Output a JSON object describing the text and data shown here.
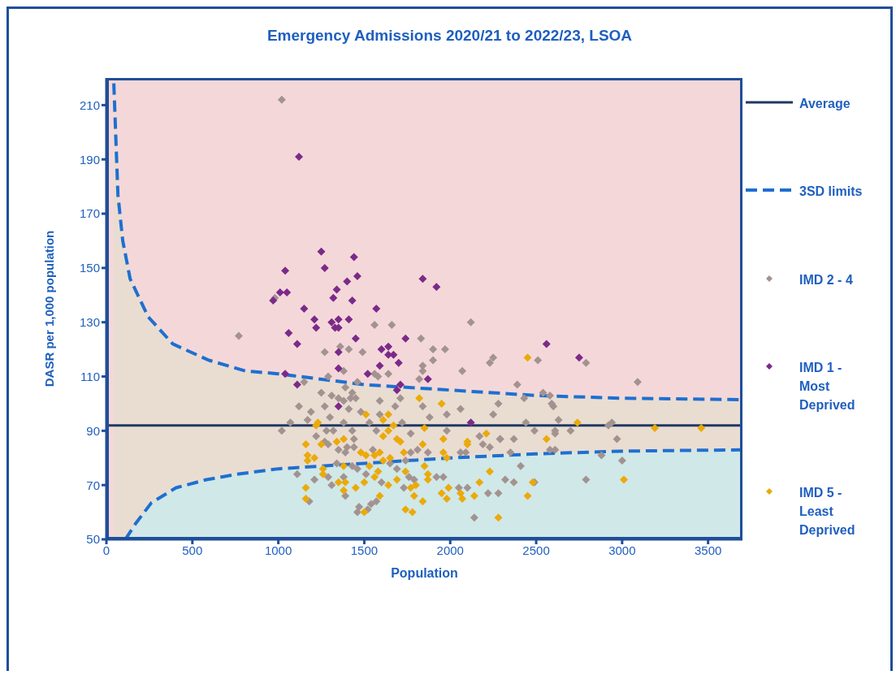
{
  "chart_data": {
    "type": "scatter",
    "title": "Emergency Admissions 2020/21 to 2022/23, LSOA",
    "xlabel": "Population",
    "ylabel": "DASR per 1,000 population",
    "xlim": [
      0,
      3700
    ],
    "ylim": [
      50,
      220
    ],
    "xticks": [
      0,
      500,
      1000,
      1500,
      2000,
      2500,
      3000,
      3500
    ],
    "yticks": [
      50,
      70,
      90,
      110,
      130,
      150,
      170,
      190,
      210
    ],
    "grid": false,
    "legend": "right",
    "series": [
      {
        "name": "Average",
        "type": "line",
        "color": "#1f3864",
        "line_style": "solid",
        "marker": "none",
        "x": [
          0,
          3700
        ],
        "values": [
          92,
          92
        ]
      },
      {
        "name": "3SD limits",
        "type": "area",
        "color": "#1f6fd0",
        "line_style": "dashed",
        "marker": "none",
        "x": [
          43,
          67,
          95,
          138,
          243,
          386,
          596,
          811,
          1000,
          1500,
          2000,
          2500,
          3000,
          3700
        ],
        "values": [
          218,
          177,
          160,
          146,
          132,
          122,
          116,
          112,
          111,
          107,
          105,
          103,
          102,
          101.5
        ]
      },
      {
        "type": "area",
        "color": "#1f6fd0",
        "line_style": "dashed",
        "marker": "none",
        "x": [
          110,
          172,
          262,
          405,
          582,
          758,
          1000,
          1500,
          2000,
          2500,
          3000,
          3700
        ],
        "values": [
          50,
          56,
          63.5,
          69,
          72,
          74,
          76,
          78,
          80,
          81.5,
          82.5,
          83
        ]
      },
      {
        "name": "IMD 2 - 4",
        "color": "#a39390",
        "marker": "diamond",
        "x": [
          1020,
          980,
          1560,
          1660,
          2120,
          1270,
          1410,
          1490,
          1360,
          1830,
          1900,
          1970,
          1900,
          1840,
          1840,
          1640,
          1560,
          1380,
          1290,
          1460,
          1580,
          1820,
          2070,
          2230,
          1150,
          1390,
          1430,
          1250,
          1310,
          1350,
          1420,
          1450,
          1380,
          1710,
          1590,
          1120,
          1270,
          1410,
          1190,
          1480,
          1590,
          1680,
          1840,
          2060,
          2280,
          2250,
          1980,
          1880,
          1300,
          1170,
          1070,
          1530,
          1720,
          1380,
          1020,
          1280,
          1430,
          1570,
          1980,
          1320,
          1770,
          1220,
          1440,
          2170,
          2290,
          1270,
          1290,
          1400,
          1440,
          2190,
          2230,
          2060,
          2090,
          1350,
          1550,
          1390,
          1770,
          1870,
          1810,
          1340,
          1740,
          1110,
          1290,
          1380,
          1460,
          1430,
          1650,
          1510,
          1690,
          1760,
          1790,
          1210,
          1310,
          1600,
          1730,
          1920,
          1960,
          2050,
          2100,
          2220,
          2280,
          2320,
          1390,
          1540,
          1570,
          1470,
          1460,
          1520,
          1180,
          2140,
          2250,
          2510,
          2790,
          2390,
          3090,
          2540,
          2430,
          2580,
          2590,
          2600,
          2630,
          2440,
          2940,
          2920,
          2490,
          2610,
          2700,
          2610,
          2290,
          2370,
          2970,
          2350,
          2580,
          2610,
          2880,
          3000,
          2410,
          2370,
          2490,
          2790,
          770
        ],
        "values": [
          212,
          139,
          129,
          129,
          130,
          119,
          120,
          119,
          121,
          124,
          120,
          120,
          116,
          114,
          112,
          111,
          111,
          112,
          110,
          108,
          110,
          109,
          112,
          115,
          108,
          106,
          104,
          104,
          103,
          102,
          102,
          102,
          101,
          102,
          101,
          99,
          99,
          98,
          97,
          97,
          96,
          99,
          99,
          98,
          100,
          96,
          96,
          95,
          95,
          94,
          93,
          93,
          93,
          93,
          90,
          90,
          90,
          90,
          90,
          90,
          89,
          88,
          87,
          88,
          87,
          86,
          85,
          84,
          84,
          85,
          84,
          82,
          82,
          83,
          83,
          82,
          82,
          82,
          83,
          78,
          79,
          74,
          73,
          73,
          76,
          77,
          78,
          74,
          76,
          73,
          72,
          72,
          70,
          71,
          69,
          73,
          73,
          69,
          69,
          67,
          67,
          72,
          66,
          63,
          64,
          62,
          60,
          61,
          64,
          58,
          117,
          116,
          115,
          107,
          108,
          104,
          102,
          103,
          100,
          99,
          94,
          93,
          93,
          92,
          90,
          90,
          90,
          89,
          87,
          87,
          87,
          82,
          83,
          83,
          81,
          79,
          77,
          71,
          71,
          72,
          125
        ]
      },
      {
        "name": "IMD 1 - Most Deprived",
        "color": "#7b2a8a",
        "marker": "diamond",
        "x": [
          1120,
          1250,
          1440,
          1040,
          1270,
          1400,
          1460,
          1840,
          1920,
          1010,
          1050,
          970,
          1340,
          1320,
          1430,
          1150,
          1570,
          1210,
          1310,
          1350,
          1410,
          1060,
          1110,
          1220,
          1330,
          1350,
          1450,
          1740,
          1350,
          1600,
          1640,
          1640,
          1670,
          1700,
          1350,
          1590,
          1520,
          1040,
          1870,
          1110,
          1710,
          1690,
          1350,
          2120,
          2560,
          2750
        ],
        "values": [
          191,
          156,
          154,
          149,
          150,
          145,
          147,
          146,
          143,
          141,
          141,
          138,
          142,
          139,
          138,
          135,
          135,
          131,
          130,
          131,
          131,
          126,
          122,
          128,
          128,
          128,
          124,
          124,
          119,
          120,
          121,
          118,
          118,
          115,
          113,
          114,
          111,
          111,
          109,
          107,
          107,
          105,
          99,
          93,
          122,
          117
        ]
      },
      {
        "name": "IMD 5 - Least Deprived",
        "color": "#ebaa0a",
        "marker": "diamond",
        "x": [
          1820,
          1950,
          1510,
          1640,
          1610,
          1230,
          1220,
          1670,
          1850,
          1640,
          1610,
          1380,
          1340,
          1250,
          1160,
          1690,
          1710,
          1840,
          1960,
          2100,
          2100,
          2210,
          1170,
          1170,
          1210,
          1480,
          1510,
          1560,
          1590,
          1610,
          1650,
          1730,
          1960,
          1980,
          1380,
          1530,
          1260,
          1260,
          1580,
          1740,
          1850,
          2230,
          1870,
          1870,
          1350,
          1390,
          1500,
          1560,
          1690,
          1640,
          1160,
          1450,
          1800,
          1770,
          2170,
          1380,
          1990,
          1950,
          2060,
          1790,
          1590,
          2140,
          1160,
          1980,
          2070,
          1840,
          1740,
          1780,
          1500,
          2280,
          2450,
          2740,
          2560,
          3190,
          3460,
          2480,
          2450,
          3010
        ],
        "values": [
          102,
          100,
          96,
          96,
          94,
          93,
          92,
          92,
          91,
          90,
          88,
          87,
          86,
          85,
          85,
          87,
          86,
          85,
          87,
          86,
          85,
          89,
          81,
          79,
          80,
          82,
          81,
          81,
          82,
          79,
          80,
          82,
          82,
          80,
          77,
          77,
          76,
          74,
          75,
          75,
          77,
          75,
          74,
          72,
          71,
          71,
          71,
          73,
          72,
          70,
          69,
          69,
          70,
          69,
          71,
          68,
          69,
          67,
          67,
          66,
          66,
          66,
          65,
          65,
          65,
          64,
          61,
          60,
          60,
          58,
          117,
          93,
          87,
          91,
          91,
          71,
          66,
          72
        ]
      }
    ]
  }
}
